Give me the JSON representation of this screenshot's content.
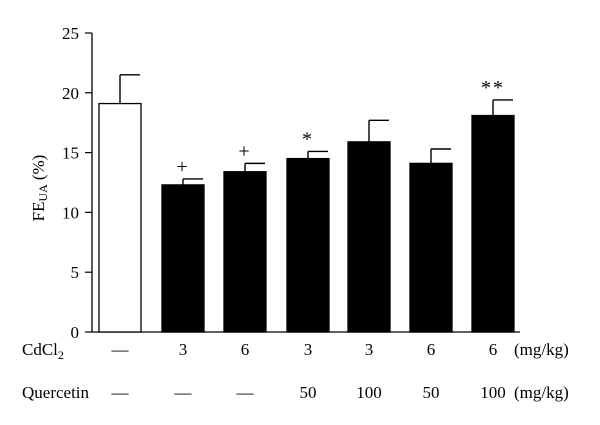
{
  "chart_data": {
    "type": "bar",
    "ylabel_main": "FE",
    "ylabel_sub": "UA",
    "ylabel_unit": "(%)",
    "ylim": [
      0,
      25
    ],
    "yticks": [
      "0",
      "5",
      "10",
      "15",
      "20",
      "25"
    ],
    "grid": false,
    "legend": "none",
    "bars": [
      {
        "value": 19.1,
        "error": 2.4,
        "fill": "white",
        "sig": ""
      },
      {
        "value": 12.3,
        "error": 0.5,
        "fill": "black",
        "sig": "+"
      },
      {
        "value": 13.4,
        "error": 0.7,
        "fill": "black",
        "sig": "+"
      },
      {
        "value": 14.5,
        "error": 0.6,
        "fill": "black",
        "sig": "*"
      },
      {
        "value": 15.9,
        "error": 1.8,
        "fill": "black",
        "sig": ""
      },
      {
        "value": 14.1,
        "error": 1.2,
        "fill": "black",
        "sig": ""
      },
      {
        "value": 18.1,
        "error": 1.3,
        "fill": "black",
        "sig": "**"
      }
    ],
    "rows": [
      {
        "name_main": "CdCl",
        "name_sub": "2",
        "values": [
          "—",
          "3",
          "6",
          "3",
          "3",
          "6",
          "6"
        ],
        "unit": "(mg/kg)"
      },
      {
        "name_main": "Quercetin",
        "name_sub": "",
        "values": [
          "—",
          "—",
          "—",
          "50",
          "100",
          "50",
          "100"
        ],
        "unit": "(mg/kg)"
      }
    ]
  }
}
